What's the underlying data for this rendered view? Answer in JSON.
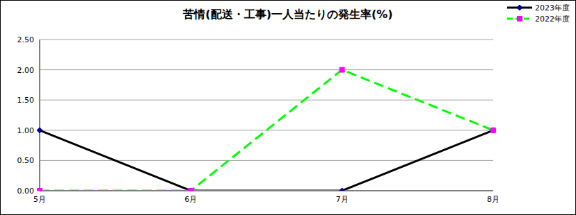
{
  "chart_data": {
    "type": "line",
    "title": "苦情(配送・工事)一人当たりの発生率(%)",
    "categories": [
      "5月",
      "6月",
      "7月",
      "8月"
    ],
    "series": [
      {
        "name": "2023年度",
        "color": "#000000",
        "marker": "diamond",
        "line_style": "solid",
        "values": [
          1,
          0,
          0,
          1
        ]
      },
      {
        "name": "2022年度",
        "color": "#00ff00",
        "marker": "square",
        "line_style": "dashed",
        "values": [
          0,
          0,
          2,
          1
        ]
      }
    ],
    "ylim": [
      0,
      2.5
    ],
    "yticks": [
      {
        "value": 0,
        "label": "0.00"
      },
      {
        "value": 0.5,
        "label": "0.50"
      },
      {
        "value": 1,
        "label": "1.00"
      },
      {
        "value": 1.5,
        "label": "1.50"
      },
      {
        "value": 2,
        "label": "2.00"
      },
      {
        "value": 2.5,
        "label": "2.50"
      }
    ],
    "grid": true,
    "legend": "top-right"
  }
}
